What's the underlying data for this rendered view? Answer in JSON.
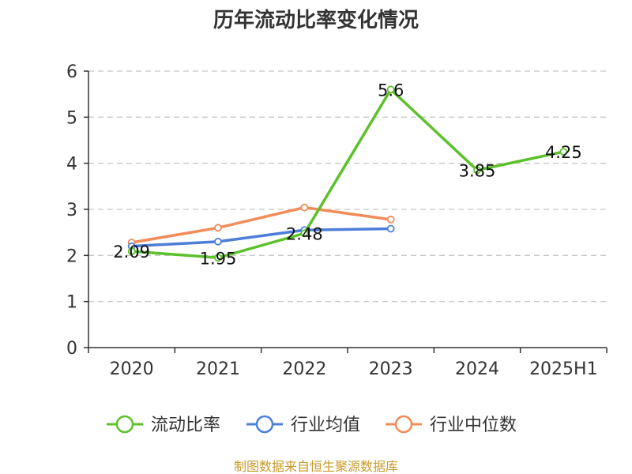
{
  "chart_data": {
    "type": "line",
    "title": "历年流动比率变化情况",
    "categories": [
      "2020",
      "2021",
      "2022",
      "2023",
      "2024",
      "2025H1"
    ],
    "ylim": [
      0,
      6
    ],
    "yticks": [
      "0",
      "1",
      "2",
      "3",
      "4",
      "5",
      "6"
    ],
    "grid": true,
    "legend_position": "bottom",
    "series": [
      {
        "name": "流动比率",
        "color": "#5cc12a",
        "values": [
          2.09,
          1.95,
          2.48,
          5.6,
          3.85,
          4.25
        ],
        "labels": [
          "2.09",
          "1.95",
          "2.48",
          "5.6",
          "3.85",
          "4.25"
        ]
      },
      {
        "name": "行业均值",
        "color": "#4e7fd8",
        "values": [
          2.2,
          2.3,
          2.55,
          2.58,
          null,
          null
        ]
      },
      {
        "name": "行业中位数",
        "color": "#f28c5a",
        "values": [
          2.28,
          2.6,
          3.04,
          2.78,
          null,
          null
        ]
      }
    ],
    "source_note": "制图数据来自恒生聚源数据库"
  }
}
